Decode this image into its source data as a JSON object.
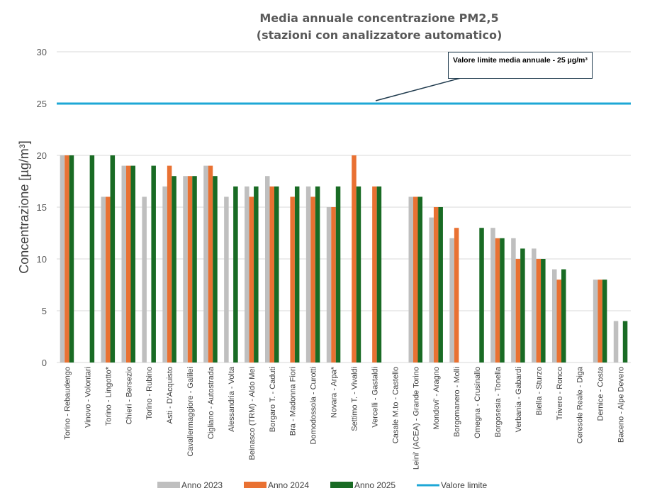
{
  "chart_data": {
    "type": "bar",
    "title_line1": "Media annuale concentrazione PM2,5",
    "title_line2": "(stazioni con analizzatore automatico)",
    "ylabel": "Concentrazione [µg/m³]",
    "xlabel": "",
    "ylim": [
      0,
      30
    ],
    "yticks": [
      "0",
      "5",
      "10",
      "15",
      "20",
      "25",
      "30"
    ],
    "grid": true,
    "legend_position": "bottom",
    "categories": [
      "Torino - Rebaudengo",
      "Vinovo - Volontari",
      "Torino - Lingotto*",
      "Chieri - Bersezio",
      "Torino - Rubino",
      "Asti - D'Acquisto",
      "Cavallermaggiore - Galilei",
      "Cigliano - Autostrada",
      "Alessandria - Volta",
      "Beinasco (TRM) - Aldo Mei",
      "Borgaro T. - Caduti",
      "Bra - Madonna Fiori",
      "Domodossola - Curotti",
      "Novara - Arpa*",
      "Settimo T. - Vivaldi",
      "Vercelli - Gastaldi",
      "Casale M.to - Castello",
      "Leini' (ACEA) - Grande Torino",
      "Mondovi' - Aragno",
      "Borgomanero - Molli",
      "Omegna - Crusinallo",
      "Borgosesia - Tonella",
      "Verbania - Gabardi",
      "Biella - Sturzo",
      "Trivero - Ronco",
      "Ceresole Reale - Diga",
      "Dernice - Costa",
      "Baceno - Alpe Devero"
    ],
    "series": [
      {
        "name": "Anno 2023",
        "color": "#bfbfbf",
        "values": [
          20,
          null,
          16,
          19,
          16,
          17,
          18,
          19,
          16,
          17,
          18,
          null,
          17,
          15,
          null,
          null,
          null,
          16,
          14,
          12,
          null,
          13,
          12,
          11,
          9,
          null,
          8,
          4
        ]
      },
      {
        "name": "Anno 2024",
        "color": "#e97132",
        "values": [
          20,
          null,
          16,
          19,
          null,
          19,
          18,
          19,
          null,
          16,
          17,
          16,
          16,
          15,
          20,
          17,
          null,
          16,
          15,
          13,
          null,
          12,
          10,
          10,
          8,
          null,
          8,
          null
        ]
      },
      {
        "name": "Anno 2025",
        "color": "#196b24",
        "values": [
          20,
          20,
          20,
          19,
          19,
          18,
          18,
          18,
          17,
          17,
          17,
          17,
          17,
          17,
          17,
          17,
          null,
          16,
          15,
          null,
          13,
          12,
          11,
          10,
          9,
          null,
          8,
          4
        ]
      }
    ],
    "limit": {
      "name": "Valore limite",
      "value": 25,
      "color": "#1ea7d6"
    },
    "annotation": "Valore limite media annuale - 25 µg/m³"
  }
}
